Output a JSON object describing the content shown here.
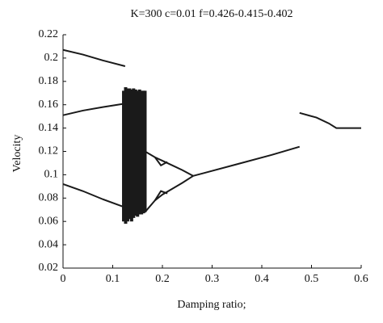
{
  "chart_data": {
    "type": "line",
    "title": "K=300 c=0.01 f=0.426-0.415-0.402",
    "xlabel": "Damping ratio;",
    "ylabel": "Velocity",
    "xlim": [
      0,
      0.6
    ],
    "ylim": [
      0.02,
      0.22
    ],
    "xticks": [
      0,
      0.1,
      0.2,
      0.3,
      0.4,
      0.5,
      0.6
    ],
    "yticks": [
      0.02,
      0.04,
      0.06,
      0.08,
      0.1,
      0.12,
      0.14,
      0.16,
      0.18,
      0.2,
      0.22
    ],
    "grid": false,
    "series": [
      {
        "color": "#1a1a1a",
        "x": [
          0,
          0.04,
          0.08,
          0.125
        ],
        "values": [
          0.207,
          0.203,
          0.198,
          0.193
        ]
      },
      {
        "color": "#1a1a1a",
        "x": [
          0,
          0.04,
          0.08,
          0.125
        ],
        "values": [
          0.151,
          0.155,
          0.158,
          0.161
        ]
      },
      {
        "color": "#1a1a1a",
        "x": [
          0,
          0.04,
          0.08,
          0.125
        ],
        "values": [
          0.092,
          0.086,
          0.079,
          0.072
        ]
      },
      {
        "color": "#1a1a1a",
        "x": [
          0.122,
          0.126,
          0.13,
          0.134,
          0.138,
          0.142,
          0.146,
          0.15,
          0.154,
          0.158,
          0.162,
          0.165
        ],
        "low": [
          0.06,
          0.058,
          0.06,
          0.062,
          0.06,
          0.063,
          0.065,
          0.064,
          0.066,
          0.066,
          0.067,
          0.068
        ],
        "values": [
          0.172,
          0.175,
          0.174,
          0.174,
          0.173,
          0.174,
          0.173,
          0.172,
          0.173,
          0.172,
          0.172,
          0.172
        ]
      },
      {
        "color": "#1a1a1a",
        "x": [
          0.165,
          0.185,
          0.2,
          0.22,
          0.24,
          0.262
        ],
        "values": [
          0.12,
          0.115,
          0.112,
          0.108,
          0.104,
          0.099
        ]
      },
      {
        "color": "#1a1a1a",
        "x": [
          0.185,
          0.197,
          0.21
        ],
        "values": [
          0.115,
          0.108,
          0.111
        ]
      },
      {
        "color": "#1a1a1a",
        "x": [
          0.165,
          0.185,
          0.2,
          0.22,
          0.24,
          0.262
        ],
        "values": [
          0.068,
          0.078,
          0.083,
          0.088,
          0.093,
          0.099
        ]
      },
      {
        "color": "#1a1a1a",
        "x": [
          0.185,
          0.197,
          0.21
        ],
        "values": [
          0.078,
          0.086,
          0.084
        ]
      },
      {
        "color": "#1a1a1a",
        "x": [
          0.262,
          0.35,
          0.42,
          0.476
        ],
        "values": [
          0.099,
          0.109,
          0.117,
          0.124
        ]
      },
      {
        "color": "#1a1a1a",
        "x": [
          0.476,
          0.51,
          0.535,
          0.55,
          0.6
        ],
        "values": [
          0.153,
          0.149,
          0.144,
          0.14,
          0.14
        ]
      }
    ]
  }
}
